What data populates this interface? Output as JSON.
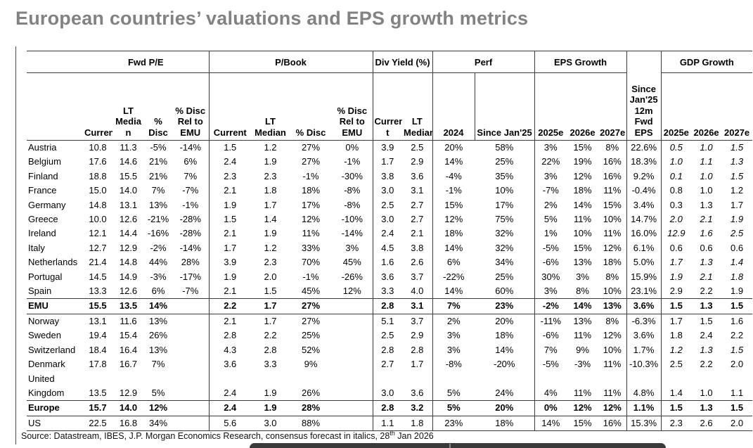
{
  "title": "European countries’ valuations and EPS growth metrics",
  "table": {
    "groups": [
      {
        "label": "",
        "span": 1
      },
      {
        "label": "Fwd P/E",
        "span": 4
      },
      {
        "label": "P/Book",
        "span": 4
      },
      {
        "label": "Div Yield (%)",
        "span": 2
      },
      {
        "label": "Perf",
        "span": 2
      },
      {
        "label": "EPS Growth",
        "span": 3
      },
      {
        "label": "",
        "span": 1,
        "noline": true
      },
      {
        "label": "GDP Growth",
        "span": 3
      }
    ],
    "subheaders": [
      "",
      "Current",
      "LT\nMedia\nn",
      "%\nDisc",
      "% Disc\nRel to\nEMU",
      "Current",
      "LT\nMedian",
      "% Disc",
      "% Disc\nRel to\nEMU",
      "Curren\nt",
      "LT\nMedian",
      "2024",
      "Since Jan'25",
      "2025e",
      "2026e",
      "2027e",
      "Since\nJan'25\n12m\nFwd\nEPS",
      "2025e",
      "2026e",
      "2027e"
    ],
    "rows": [
      {
        "label": "Austria",
        "bold": false,
        "divider": false,
        "italic_gdp": true,
        "cells": [
          "10.8",
          "11.3",
          "-5%",
          "-14%",
          "1.5",
          "1.2",
          "27%",
          "0%",
          "3.9",
          "2.5",
          "20%",
          "58%",
          "3%",
          "15%",
          "8%",
          "22.6%",
          "0.5",
          "1.0",
          "1.5"
        ]
      },
      {
        "label": "Belgium",
        "bold": false,
        "divider": false,
        "italic_gdp": true,
        "cells": [
          "17.6",
          "14.6",
          "21%",
          "6%",
          "2.4",
          "1.9",
          "27%",
          "-1%",
          "1.7",
          "2.9",
          "14%",
          "25%",
          "22%",
          "19%",
          "16%",
          "18.3%",
          "1.0",
          "1.1",
          "1.3"
        ]
      },
      {
        "label": "Finland",
        "bold": false,
        "divider": false,
        "italic_gdp": true,
        "cells": [
          "18.8",
          "15.5",
          "21%",
          "7%",
          "2.3",
          "2.3",
          "-1%",
          "-30%",
          "3.8",
          "3.6",
          "-4%",
          "35%",
          "3%",
          "12%",
          "16%",
          "9.2%",
          "0.1",
          "1.0",
          "1.5"
        ]
      },
      {
        "label": "France",
        "bold": false,
        "divider": false,
        "italic_gdp": false,
        "cells": [
          "15.0",
          "14.0",
          "7%",
          "-7%",
          "2.1",
          "1.8",
          "18%",
          "-8%",
          "3.0",
          "3.1",
          "-1%",
          "10%",
          "-7%",
          "18%",
          "11%",
          "-0.4%",
          "0.8",
          "1.0",
          "1.2"
        ]
      },
      {
        "label": "Germany",
        "bold": false,
        "divider": false,
        "italic_gdp": false,
        "cells": [
          "14.8",
          "13.1",
          "13%",
          "-1%",
          "1.9",
          "1.7",
          "17%",
          "-8%",
          "2.5",
          "2.7",
          "15%",
          "17%",
          "2%",
          "14%",
          "15%",
          "3.4%",
          "0.3",
          "1.3",
          "1.7"
        ]
      },
      {
        "label": "Greece",
        "bold": false,
        "divider": false,
        "italic_gdp": true,
        "cells": [
          "10.0",
          "12.6",
          "-21%",
          "-28%",
          "1.5",
          "1.4",
          "12%",
          "-10%",
          "3.0",
          "2.7",
          "12%",
          "75%",
          "5%",
          "11%",
          "10%",
          "14.7%",
          "2.0",
          "2.1",
          "1.9"
        ]
      },
      {
        "label": "Ireland",
        "bold": false,
        "divider": false,
        "italic_gdp": true,
        "cells": [
          "12.1",
          "14.4",
          "-16%",
          "-28%",
          "2.1",
          "1.9",
          "11%",
          "-14%",
          "2.4",
          "2.1",
          "18%",
          "32%",
          "1%",
          "10%",
          "11%",
          "16.0%",
          "12.9",
          "1.6",
          "2.5"
        ]
      },
      {
        "label": "Italy",
        "bold": false,
        "divider": false,
        "italic_gdp": false,
        "cells": [
          "12.7",
          "12.9",
          "-2%",
          "-14%",
          "1.7",
          "1.2",
          "33%",
          "3%",
          "4.5",
          "3.8",
          "14%",
          "32%",
          "-5%",
          "15%",
          "12%",
          "6.1%",
          "0.6",
          "0.6",
          "0.6"
        ]
      },
      {
        "label": "Netherlands",
        "bold": false,
        "divider": false,
        "italic_gdp": true,
        "cells": [
          "21.4",
          "14.8",
          "44%",
          "28%",
          "3.9",
          "2.3",
          "70%",
          "45%",
          "1.6",
          "2.6",
          "6%",
          "34%",
          "-6%",
          "13%",
          "18%",
          "5.0%",
          "1.7",
          "1.3",
          "1.4"
        ]
      },
      {
        "label": "Portugal",
        "bold": false,
        "divider": false,
        "italic_gdp": true,
        "cells": [
          "14.5",
          "14.9",
          "-3%",
          "-17%",
          "1.9",
          "2.0",
          "-1%",
          "-26%",
          "3.6",
          "3.7",
          "-22%",
          "25%",
          "30%",
          "3%",
          "8%",
          "15.9%",
          "1.9",
          "2.1",
          "1.8"
        ]
      },
      {
        "label": "Spain",
        "bold": false,
        "divider": false,
        "italic_gdp": false,
        "cells": [
          "13.3",
          "12.6",
          "6%",
          "-7%",
          "2.1",
          "1.5",
          "45%",
          "12%",
          "3.3",
          "4.0",
          "14%",
          "60%",
          "3%",
          "8%",
          "10%",
          "23.1%",
          "2.9",
          "2.2",
          "1.9"
        ]
      },
      {
        "label": "EMU",
        "bold": true,
        "divider": true,
        "italic_gdp": false,
        "cells": [
          "15.5",
          "13.5",
          "14%",
          "",
          "2.2",
          "1.7",
          "27%",
          "",
          "2.8",
          "3.1",
          "7%",
          "23%",
          "-2%",
          "14%",
          "13%",
          "3.6%",
          "1.5",
          "1.3",
          "1.5"
        ]
      },
      {
        "label": "Norway",
        "bold": false,
        "divider": false,
        "italic_gdp": false,
        "cells": [
          "13.1",
          "11.6",
          "13%",
          "",
          "2.1",
          "1.7",
          "27%",
          "",
          "5.1",
          "3.7",
          "2%",
          "20%",
          "-11%",
          "13%",
          "8%",
          "-6.3%",
          "1.7",
          "1.5",
          "1.6"
        ]
      },
      {
        "label": "Sweden",
        "bold": false,
        "divider": false,
        "italic_gdp": false,
        "cells": [
          "19.4",
          "15.4",
          "26%",
          "",
          "2.8",
          "2.2",
          "25%",
          "",
          "2.5",
          "2.9",
          "3%",
          "18%",
          "-6%",
          "11%",
          "12%",
          "3.6%",
          "1.8",
          "2.4",
          "2.2"
        ]
      },
      {
        "label": "Switzerland",
        "bold": false,
        "divider": false,
        "italic_gdp": true,
        "cells": [
          "18.4",
          "16.4",
          "13%",
          "",
          "4.3",
          "2.8",
          "52%",
          "",
          "2.8",
          "2.8",
          "3%",
          "14%",
          "7%",
          "9%",
          "10%",
          "1.7%",
          "1.2",
          "1.3",
          "1.5"
        ]
      },
      {
        "label": "Denmark",
        "bold": false,
        "divider": false,
        "italic_gdp": false,
        "cells": [
          "17.8",
          "16.7",
          "7%",
          "",
          "3.6",
          "3.3",
          "9%",
          "",
          "2.7",
          "1.7",
          "-8%",
          "-20%",
          "-5%",
          "-3%",
          "11%",
          "-10.3%",
          "2.5",
          "2.2",
          "2.0"
        ]
      },
      {
        "label": "United\nKingdom",
        "bold": false,
        "divider": false,
        "italic_gdp": false,
        "cells": [
          "13.5",
          "12.9",
          "5%",
          "",
          "2.4",
          "1.9",
          "26%",
          "",
          "3.0",
          "3.6",
          "5%",
          "24%",
          "4%",
          "11%",
          "11%",
          "4.8%",
          "1.4",
          "1.0",
          "1.1"
        ]
      },
      {
        "label": "Europe",
        "bold": true,
        "divider": true,
        "italic_gdp": false,
        "cells": [
          "15.7",
          "14.0",
          "12%",
          "",
          "2.4",
          "1.9",
          "28%",
          "",
          "2.8",
          "3.2",
          "5%",
          "20%",
          "0%",
          "12%",
          "12%",
          "1.1%",
          "1.5",
          "1.3",
          "1.5"
        ]
      },
      {
        "label": "US",
        "bold": false,
        "divider": false,
        "italic_gdp": false,
        "cells": [
          "22.5",
          "16.8",
          "34%",
          "",
          "5.6",
          "3.0",
          "88%",
          "",
          "1.1",
          "1.8",
          "23%",
          "18%",
          "14%",
          "15%",
          "16%",
          "15.3%",
          "2.3",
          "2.6",
          "2.0"
        ]
      }
    ]
  },
  "footer": {
    "prefix": "Source: Datastream, IBES, J.P. Morgan Economics Research, consensus forecast in italics, 28",
    "superscript": "th",
    "suffix": " Jan 2026"
  }
}
